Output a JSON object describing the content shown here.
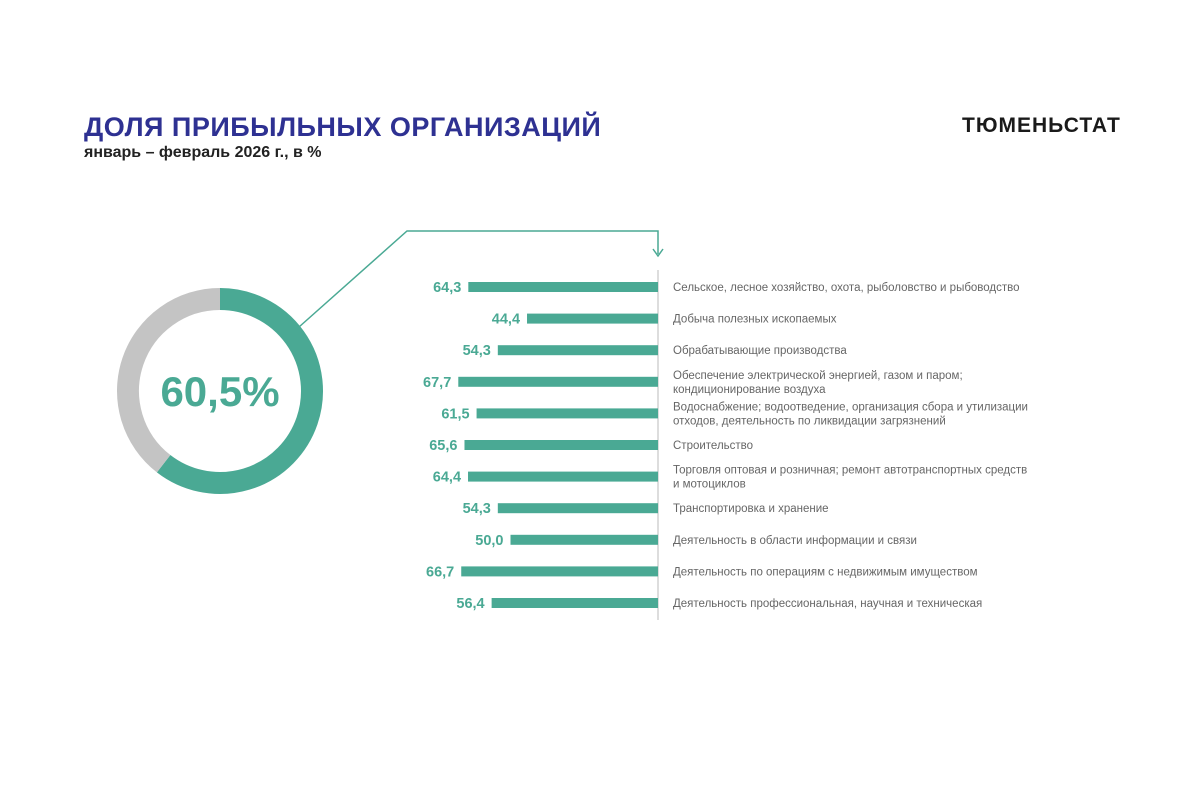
{
  "header": {
    "title": "ДОЛЯ ПРИБЫЛЬНЫХ ОРГАНИЗАЦИЙ",
    "subtitle": "январь – февраль 2026 г., в %",
    "brand": "ТЮМЕНЬСТАТ"
  },
  "colors": {
    "accent": "#4aa994",
    "ring_rest": "#c4c4c4",
    "title": "#2e3192",
    "category_text": "#666666",
    "axis": "#bbbbbb"
  },
  "chart_data": [
    {
      "type": "pie",
      "variant": "donut",
      "center_label": "60,5%",
      "slices": [
        {
          "value": 60.5,
          "color": "#4aa994"
        },
        {
          "value": 39.5,
          "color": "#c4c4c4"
        }
      ]
    },
    {
      "type": "bar",
      "orientation": "horizontal",
      "categories": [
        "Сельское, лесное хозяйство, охота, рыболовство и рыбоводство",
        "Добыча полезных ископаемых",
        "Обрабатывающие производства",
        "Обеспечение электрической энергией, газом и паром; кондиционирование воздуха",
        "Водоснабжение; водоотведение, организация сбора и утилизации отходов, деятельность по ликвидации загрязнений",
        "Строительство",
        "Торговля оптовая и розничная; ремонт автотранспортных средств и мотоциклов",
        "Транспортировка и хранение",
        "Деятельность в области информации и связи",
        "Деятельность по операциям с недвижимым имуществом",
        "Деятельность профессиональная, научная и техническая"
      ],
      "values": [
        64.3,
        44.4,
        54.3,
        67.7,
        61.5,
        65.6,
        64.4,
        54.3,
        50.0,
        66.7,
        56.4
      ],
      "value_labels": [
        "64,3",
        "44,4",
        "54,3",
        "67,7",
        "61,5",
        "65,6",
        "64,4",
        "54,3",
        "50,0",
        "66,7",
        "56,4"
      ],
      "category_lines": [
        [
          "Сельское, лесное хозяйство, охота, рыболовство и рыбоводство"
        ],
        [
          "Добыча полезных ископаемых"
        ],
        [
          "Обрабатывающие производства"
        ],
        [
          "Обеспечение электрической энергией, газом и паром;",
          "кондиционирование воздуха"
        ],
        [
          "Водоснабжение; водоотведение, организация сбора и утилизации",
          "отходов, деятельность по ликвидации загрязнений"
        ],
        [
          "Строительство"
        ],
        [
          "Торговля оптовая и розничная; ремонт автотранспортных средств",
          "и мотоциклов"
        ],
        [
          "Транспортировка и хранение"
        ],
        [
          "Деятельность в области информации и связи"
        ],
        [
          "Деятельность по операциям с недвижимым имуществом"
        ],
        [
          "Деятельность профессиональная, научная и техническая"
        ]
      ],
      "bar_direction": "right-to-left",
      "grid": false,
      "legend": "none"
    }
  ]
}
